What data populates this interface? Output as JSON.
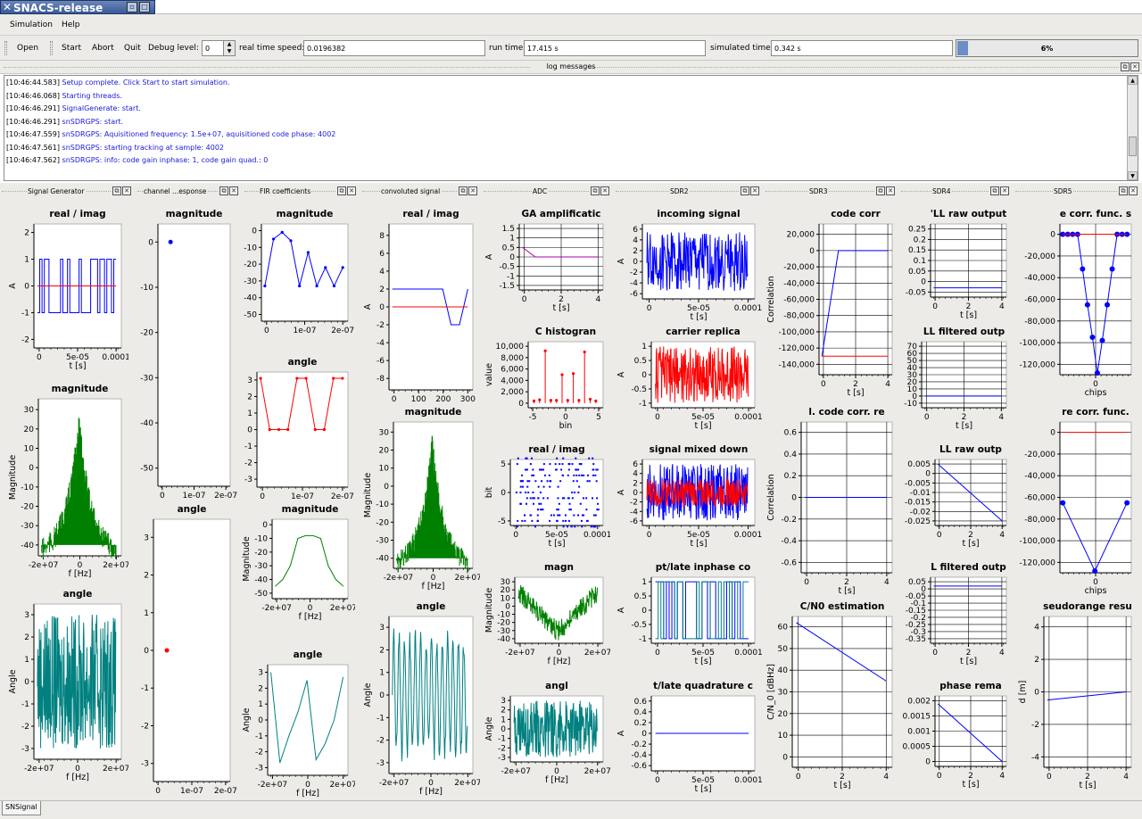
{
  "window": {
    "title": "SNACS-release"
  },
  "menu": {
    "simulation": "Simulation",
    "help": "Help"
  },
  "toolbar": {
    "open": "Open",
    "start": "Start",
    "abort": "Abort",
    "quit": "Quit",
    "debug_label": "Debug level:",
    "debug_value": "0",
    "rts_label": "real time speed:",
    "rts_value": "0.0196382",
    "runtime_label": "run time:",
    "runtime_value": "17.415 s",
    "simtime_label": "simulated time:",
    "simtime_value": "0.342 s",
    "progress_text": "6%",
    "progress": 0.06
  },
  "log": {
    "title": "log messages",
    "lines": [
      {
        "ts": "[10:46:44.583]",
        "msg": "Setup complete. Click Start to start simulation."
      },
      {
        "ts": "[10:46:46.068]",
        "msg": "Starting  threads."
      },
      {
        "ts": "[10:46:46.291]",
        "msg": "SignalGenerate: start."
      },
      {
        "ts": "[10:46:46.291]",
        "msg": "snSDRGPS: start."
      },
      {
        "ts": "[10:46:47.559]",
        "msg": "snSDRGPS: Aquisitioned frequency: 1.5e+07, aquisitioned code phase: 4002"
      },
      {
        "ts": "[10:46:47.561]",
        "msg": "snSDRGPS: starting tracking at sample: 4002"
      },
      {
        "ts": "[10:46:47.562]",
        "msg": "snSDRGPS: info: code gain inphase: 1, code gain quad.: 0"
      }
    ]
  },
  "docks": [
    {
      "title": "Signal Generator"
    },
    {
      "title": "channel ...esponse"
    },
    {
      "title": "FIR coefficients"
    },
    {
      "title": "convoluted signal"
    },
    {
      "title": "ADC"
    },
    {
      "title": "SDR2"
    },
    {
      "title": "SDR3"
    },
    {
      "title": "SDR4"
    },
    {
      "title": "SDR5"
    }
  ],
  "statusbar": {
    "tab": "SNSignal"
  },
  "colors": {
    "blue": "#0000ff",
    "red": "#ff0000",
    "green": "#008000",
    "teal": "#008080"
  },
  "chart_data": [
    {
      "id": "sg_ri",
      "type": "line",
      "title": "real / imag",
      "ylabel": "A",
      "xlabel": "t [s]",
      "yticks": [
        "2",
        "1",
        "0",
        "-1",
        "-2"
      ],
      "xticks": [
        "0",
        "5e-05",
        "0.0001"
      ],
      "series": [
        {
          "color": "#0000ff",
          "style": "square-wave",
          "range": [
            -1,
            1
          ]
        },
        {
          "color": "#ff0000",
          "values": [
            0
          ]
        }
      ]
    },
    {
      "id": "sg_mag",
      "type": "line",
      "title": "magnitude",
      "ylabel": "Magnitude",
      "xlabel": "f [Hz]",
      "yticks": [
        "30",
        "20",
        "10",
        "0",
        "-10",
        "-20",
        "-30",
        "-40"
      ],
      "xticks": [
        "-2e+07",
        "0",
        "2e+07"
      ],
      "series": [
        {
          "color": "#008000",
          "style": "spectrum",
          "peak": 30,
          "floor": -40
        }
      ]
    },
    {
      "id": "sg_ang",
      "type": "line",
      "title": "angle",
      "ylabel": "Angle",
      "xlabel": "f [Hz]",
      "yticks": [
        "3",
        "2",
        "1",
        "0",
        "-1",
        "-2",
        "-3"
      ],
      "xticks": [
        "-2e+07",
        "0",
        "2e+07"
      ],
      "series": [
        {
          "color": "#008080",
          "style": "noise-fill",
          "range": [
            -3,
            3
          ]
        }
      ]
    },
    {
      "id": "ch_mag",
      "type": "scatter",
      "title": "magnitude",
      "ylabel": "",
      "xlabel": "",
      "yticks": [
        "0",
        "-10",
        "-20",
        "-30",
        "-40",
        "-50"
      ],
      "xticks": [
        "0",
        "1e-07",
        "2e-07"
      ],
      "series": [
        {
          "color": "#0000ff",
          "points": [
            [
              0,
              0
            ]
          ]
        }
      ]
    },
    {
      "id": "ch_ang",
      "type": "scatter",
      "title": "angle",
      "ylabel": "",
      "xlabel": "",
      "yticks": [
        "3",
        "2",
        "1",
        "0",
        "-1",
        "-2",
        "-3"
      ],
      "xticks": [
        "0",
        "1e-07",
        "2e-07"
      ],
      "series": [
        {
          "color": "#ff0000",
          "points": [
            [
              0,
              0
            ]
          ]
        }
      ]
    },
    {
      "id": "fir_mag",
      "type": "line",
      "title": "magnitude",
      "ylabel": "",
      "xlabel": "",
      "yticks": [
        "0",
        "-10",
        "-20",
        "-30",
        "-40",
        "-50"
      ],
      "xticks": [
        "0",
        "1e-07",
        "2e-07"
      ],
      "series": [
        {
          "color": "#0000ff",
          "values": [
            -33,
            -5,
            -1,
            -6,
            -33,
            -13,
            -33,
            -22,
            -33,
            -22
          ]
        }
      ]
    },
    {
      "id": "fir_ang",
      "type": "line",
      "title": "angle",
      "ylabel": "",
      "xlabel": "",
      "yticks": [
        "3",
        "2",
        "1",
        "0",
        "-1",
        "-2",
        "-3"
      ],
      "xticks": [
        "0",
        "1e-07",
        "2e-07"
      ],
      "series": [
        {
          "color": "#ff0000",
          "values": [
            3.1,
            0,
            0,
            0,
            3.1,
            3.1,
            0,
            0,
            3.1,
            3.1
          ]
        }
      ]
    },
    {
      "id": "fir_mag2",
      "type": "line",
      "title": "magnitude",
      "ylabel": "Magnitude",
      "xlabel": "f [Hz]",
      "yticks": [
        "0",
        "-10",
        "-20",
        "-30",
        "-40",
        "-50"
      ],
      "xticks": [
        "-2e+07",
        "0",
        "2e+07"
      ],
      "series": [
        {
          "color": "#008000",
          "values": [
            -45,
            -40,
            -30,
            -10,
            -8,
            -8,
            -10,
            -30,
            -40,
            -45
          ]
        }
      ]
    },
    {
      "id": "fir_ang2",
      "type": "line",
      "title": "angle",
      "ylabel": "Angle",
      "xlabel": "f [Hz]",
      "yticks": [
        "3",
        "2",
        "1",
        "0",
        "-1",
        "-2",
        "-3"
      ],
      "xticks": [
        "-2e+07",
        "0",
        "2e+07"
      ],
      "series": [
        {
          "color": "#008080",
          "values": [
            3,
            -2.7,
            -1,
            0.5,
            2.5,
            -2.5,
            -1.5,
            0,
            2.7
          ]
        }
      ]
    },
    {
      "id": "cv_ri",
      "type": "line",
      "title": "real / imag",
      "ylabel": "A",
      "xlabel": "",
      "yticks": [
        "8",
        "6",
        "4",
        "2",
        "0",
        "-2",
        "-4",
        "-6",
        "-8"
      ],
      "xticks": [
        "0",
        "100",
        "200",
        "300"
      ],
      "series": [
        {
          "color": "#0000ff",
          "values": [
            2,
            2,
            2,
            2,
            2,
            2,
            2,
            -2,
            -2,
            2
          ]
        },
        {
          "color": "#ff0000",
          "values": [
            0
          ]
        }
      ]
    },
    {
      "id": "cv_mag",
      "type": "line",
      "title": "magnitude",
      "ylabel": "Magnitude",
      "xlabel": "f [Hz]",
      "yticks": [
        "30",
        "20",
        "10",
        "0",
        "-10",
        "-20",
        "-30",
        "-40"
      ],
      "xticks": [
        "-2e+07",
        "0",
        "2e+07"
      ],
      "series": [
        {
          "color": "#008000",
          "style": "spectrum",
          "peak": 30,
          "floor": -40
        }
      ]
    },
    {
      "id": "cv_ang",
      "type": "line",
      "title": "angle",
      "ylabel": "Angle",
      "xlabel": "f [Hz]",
      "yticks": [
        "3",
        "2",
        "1",
        "0",
        "-1",
        "-2",
        "-3"
      ],
      "xticks": [
        "-2e+07",
        "0",
        "2e+07"
      ],
      "series": [
        {
          "color": "#008080",
          "style": "oscillating",
          "range": [
            -3,
            3
          ]
        }
      ]
    },
    {
      "id": "adc_agc",
      "type": "line",
      "title": "GA amplificatic",
      "ylabel": "A",
      "xlabel": "t [s]",
      "yticks": [
        "1.5",
        "1",
        "0.5",
        "0",
        "-0.5",
        "-1",
        "-1.5"
      ],
      "xticks": [
        "0",
        "2",
        "4"
      ],
      "series": [
        {
          "color": "#aa00aa",
          "values": [
            0.5,
            0,
            0,
            0,
            0,
            0,
            0
          ]
        }
      ]
    },
    {
      "id": "adc_hist",
      "type": "bar",
      "title": "C histogran",
      "ylabel": "value",
      "xlabel": "bin",
      "yticks": [
        "10,000",
        "8,000",
        "6,000",
        "4,000",
        "2,000",
        "0"
      ],
      "xticks": [
        "-5",
        "0",
        "5"
      ],
      "series": [
        {
          "color": "#ff0000",
          "values": [
            400,
            600,
            9200,
            500,
            500,
            5000,
            500,
            5200,
            500,
            9000,
            700,
            400
          ]
        }
      ]
    },
    {
      "id": "adc_ri",
      "type": "scatter",
      "title": "real / imag",
      "ylabel": "bit",
      "xlabel": "t [s]",
      "yticks": [
        "5",
        "0",
        "-5"
      ],
      "xticks": [
        "0",
        "5e-05",
        "0.0001"
      ],
      "series": [
        {
          "color": "#0000ff",
          "style": "levels",
          "range": [
            -6,
            6
          ]
        }
      ]
    },
    {
      "id": "adc_magn",
      "type": "line",
      "title": "magn",
      "ylabel": "Magnitude",
      "xlabel": "f [Hz]",
      "yticks": [
        "30",
        "20",
        "10",
        "0",
        "-10",
        "-20",
        "-30",
        "-40"
      ],
      "xticks": [
        "-2e+07",
        "0",
        "2e+07"
      ],
      "series": [
        {
          "color": "#008000",
          "style": "valley",
          "peak": 30,
          "floor": -40
        }
      ]
    },
    {
      "id": "adc_angl",
      "type": "line",
      "title": "angl",
      "ylabel": "Angle",
      "xlabel": "f [Hz]",
      "yticks": [
        "3",
        "2",
        "1",
        "0",
        "-1",
        "-2",
        "-3"
      ],
      "xticks": [
        "-2e+07",
        "0",
        "2e+07"
      ],
      "series": [
        {
          "color": "#008080",
          "style": "noise-fill",
          "range": [
            -3,
            3
          ]
        }
      ]
    },
    {
      "id": "sdr2_in",
      "type": "line",
      "title": "incoming signal",
      "ylabel": "A",
      "xlabel": "t [s]",
      "yticks": [
        "6",
        "4",
        "2",
        "0",
        "-2",
        "-4",
        "-6"
      ],
      "xticks": [
        "0",
        "5e-05",
        "0.0001"
      ],
      "series": [
        {
          "color": "#0000ff",
          "style": "noise-fill",
          "range": [
            -5.5,
            5.5
          ]
        }
      ]
    },
    {
      "id": "sdr2_car",
      "type": "line",
      "title": "carrier replica",
      "ylabel": "A",
      "xlabel": "t [s]",
      "yticks": [
        "1",
        "0.5",
        "0",
        "-0.5",
        "-1"
      ],
      "xticks": [
        "0",
        "5e-05",
        "0.0001"
      ],
      "series": [
        {
          "color": "#ff0000",
          "style": "noise-fill",
          "range": [
            -1,
            1
          ]
        }
      ]
    },
    {
      "id": "sdr2_mix",
      "type": "line",
      "title": "signal mixed down",
      "ylabel": "A",
      "xlabel": "t [s]",
      "yticks": [
        "6",
        "4",
        "2",
        "0",
        "-2",
        "-4",
        "-6"
      ],
      "xticks": [
        "0",
        "5e-05",
        "0.0001"
      ],
      "series": [
        {
          "color": "#0000ff",
          "style": "noise-fill",
          "range": [
            -6,
            6
          ]
        },
        {
          "color": "#ff0000",
          "style": "noise-fill",
          "range": [
            -3,
            3
          ]
        }
      ]
    },
    {
      "id": "sdr2_inp",
      "type": "line",
      "title": "pt/late inphase co",
      "ylabel": "A",
      "xlabel": "t [s]",
      "yticks": [
        "1",
        "0.5",
        "0",
        "-0.5",
        "-1"
      ],
      "xticks": [
        "0",
        "5e-05",
        "0.0001"
      ],
      "series": [
        {
          "color": "#0000ff",
          "style": "square-wave",
          "range": [
            -1,
            1
          ]
        },
        {
          "color": "#008080",
          "style": "square-wave",
          "range": [
            -1,
            1
          ]
        }
      ]
    },
    {
      "id": "sdr2_quad",
      "type": "line",
      "title": "t/late quadrature c",
      "ylabel": "A",
      "xlabel": "t [s]",
      "yticks": [
        "0.6",
        "0.4",
        "0.2",
        "0",
        "-0.2",
        "-0.4",
        "-0.6"
      ],
      "xticks": [
        "0",
        "5e-05",
        "0.0001"
      ],
      "series": [
        {
          "color": "#0000ff",
          "values": [
            0
          ]
        }
      ]
    },
    {
      "id": "sdr3_code",
      "type": "line",
      "title": "code corr",
      "ylabel": "Correlation",
      "xlabel": "t [s]",
      "yticks": [
        "20,000",
        "0",
        "-20,000",
        "-40,000",
        "-60,000",
        "-80,000",
        "-100,000",
        "-120,000",
        "-140,000"
      ],
      "xticks": [
        "0",
        "2",
        "4"
      ],
      "series": [
        {
          "color": "#0000ff",
          "values": [
            -130000,
            0,
            0,
            0,
            0
          ]
        },
        {
          "color": "#ff0000",
          "values": [
            -130000
          ]
        }
      ]
    },
    {
      "id": "sdr3_norm",
      "type": "line",
      "title": "l. code corr. re",
      "ylabel": "Correlation",
      "xlabel": "t [s]",
      "yticks": [
        "0.6",
        "0.4",
        "0.2",
        "0",
        "-0.2",
        "-0.4",
        "-0.6"
      ],
      "xticks": [
        "0",
        "2",
        "4"
      ],
      "series": [
        {
          "color": "#0000ff",
          "values": [
            0
          ]
        }
      ]
    },
    {
      "id": "sdr3_cn0",
      "type": "line",
      "title": "C/N0 estimation",
      "ylabel": "C/N_0 [dBHz]",
      "xlabel": "t [s]",
      "yticks": [
        "60",
        "50",
        "40",
        "30",
        "20",
        "10",
        "0"
      ],
      "xticks": [
        "0",
        "2",
        "4"
      ],
      "series": [
        {
          "color": "#0000ff",
          "values": [
            62,
            35
          ]
        }
      ]
    },
    {
      "id": "sdr4_raw",
      "type": "line",
      "title": "'LL raw output",
      "ylabel": "",
      "xlabel": "t [s]",
      "yticks": [
        "0.25",
        "0.2",
        "0.15",
        "0.1",
        "0.05",
        "0",
        "-0.05"
      ],
      "xticks": [
        "0",
        "2",
        "4"
      ],
      "series": [
        {
          "color": "#0000ff",
          "values": [
            -0.03
          ]
        }
      ]
    },
    {
      "id": "sdr4_filt",
      "type": "line",
      "title": "LL filtered outp",
      "ylabel": "",
      "xlabel": "t [s]",
      "yticks": [
        "70",
        "60",
        "50",
        "40",
        "30",
        "20",
        "10",
        "0",
        "-10"
      ],
      "xticks": [
        "0",
        "2",
        "4"
      ],
      "series": [
        {
          "color": "#0000ff",
          "values": [
            0
          ]
        }
      ]
    },
    {
      "id": "sdr4_raw2",
      "type": "line",
      "title": "LL raw outp",
      "ylabel": "",
      "xlabel": "t [s]",
      "yticks": [
        "0.005",
        "0",
        "-0.005",
        "-0.01",
        "-0.015",
        "-0.02",
        "-0.025"
      ],
      "xticks": [
        "0",
        "2",
        "4"
      ],
      "series": [
        {
          "color": "#0000ff",
          "values": [
            0.005,
            -0.025
          ]
        }
      ]
    },
    {
      "id": "sdr4_filt2",
      "type": "line",
      "title": "L filtered outp",
      "ylabel": "",
      "xlabel": "t [s]",
      "yticks": [
        "0.05",
        "0",
        "-0.05",
        "-0.1",
        "-0.15",
        "-0.2",
        "-0.25",
        "-0.3",
        "-0.35"
      ],
      "xticks": [
        "0",
        "2",
        "4"
      ],
      "series": [
        {
          "color": "#0000ff",
          "values": [
            0.02
          ]
        }
      ]
    },
    {
      "id": "sdr4_phase",
      "type": "line",
      "title": "phase rema",
      "ylabel": "",
      "xlabel": "t [s]",
      "yticks": [
        "0.002",
        "0.0015",
        "0.001",
        "0.0005",
        "0"
      ],
      "xticks": [
        "0",
        "2",
        "4"
      ],
      "series": [
        {
          "color": "#0000ff",
          "values": [
            0.0019,
            0
          ]
        }
      ]
    },
    {
      "id": "sdr5_corr1",
      "type": "line",
      "title": "e corr. func. s",
      "ylabel": "",
      "xlabel": "chips",
      "yticks": [
        "0",
        "-20,000",
        "-40,000",
        "-60,000",
        "-80,000",
        "-100,000",
        "-120,000"
      ],
      "xticks": [
        "0"
      ],
      "series": [
        {
          "color": "#0000ff",
          "values": [
            0,
            0,
            0,
            0,
            -32000,
            -65000,
            -95000,
            -128000,
            -98000,
            -65000,
            -32000,
            0,
            0,
            0
          ]
        },
        {
          "color": "#ff0000",
          "values": [
            0
          ]
        }
      ]
    },
    {
      "id": "sdr5_corr2",
      "type": "line",
      "title": "re corr. func.",
      "ylabel": "",
      "xlabel": "chips",
      "yticks": [
        "0",
        "-20,000",
        "-40,000",
        "-60,000",
        "-80,000",
        "-100,000",
        "-120,000"
      ],
      "xticks": [
        "0"
      ],
      "series": [
        {
          "color": "#0000ff",
          "values": [
            -65000,
            -128000,
            -65000
          ]
        },
        {
          "color": "#ff0000",
          "values": [
            0
          ]
        }
      ]
    },
    {
      "id": "sdr5_pr",
      "type": "line",
      "title": "seudorange resu",
      "ylabel": "d [m]",
      "xlabel": "t [s]",
      "yticks": [
        "4",
        "2",
        "0",
        "-2",
        "-4"
      ],
      "xticks": [
        "0",
        "2",
        "4"
      ],
      "series": [
        {
          "color": "#0000ff",
          "values": [
            -0.5,
            0
          ]
        }
      ]
    }
  ]
}
